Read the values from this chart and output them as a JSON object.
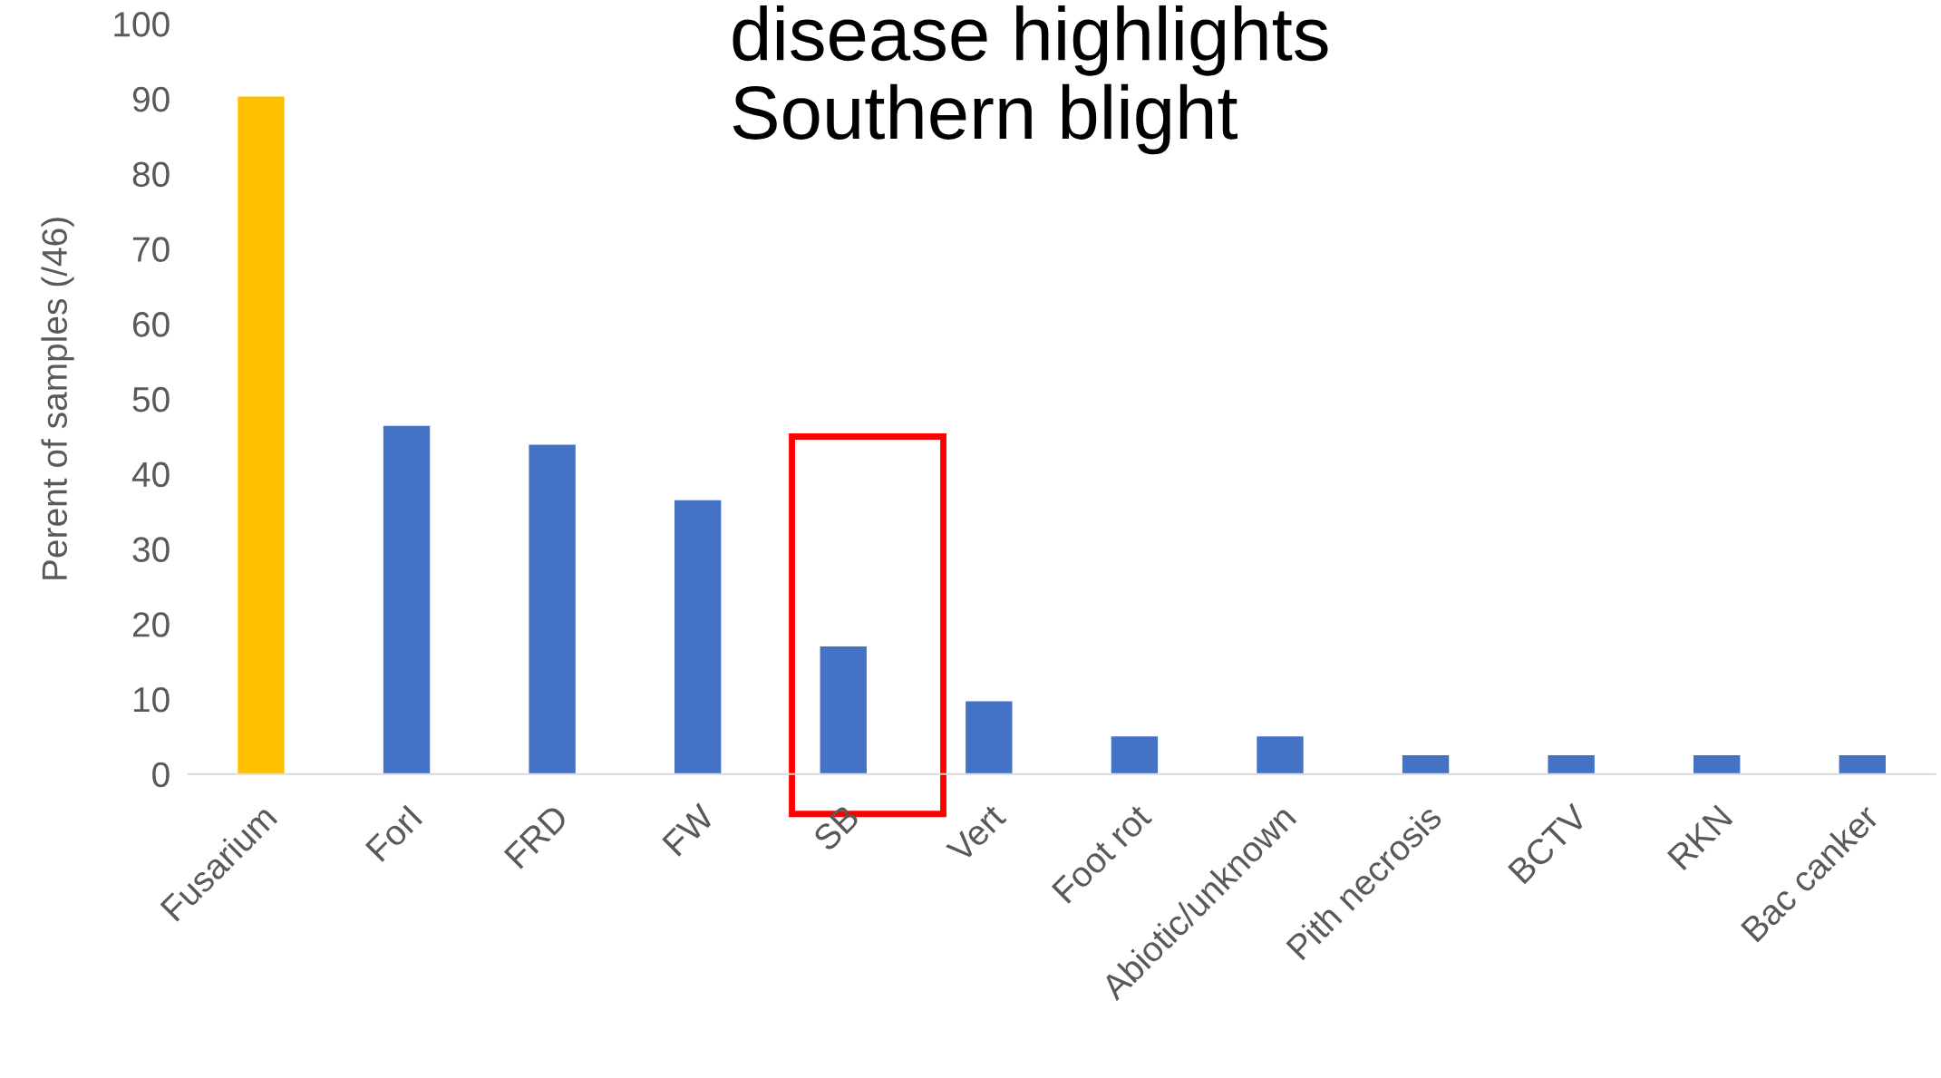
{
  "chart_data": {
    "type": "bar",
    "title": "disease highlights\nSouthern blight",
    "ylabel": "Perent of samples (/46)",
    "categories": [
      "Fusarium",
      "ForI",
      "FRD",
      "FW",
      "SB",
      "Vert",
      "Foot rot",
      "Abiotic/unknown",
      "Pith necrosis",
      "BCTV",
      "RKN",
      "Bac canker"
    ],
    "values": [
      90.3,
      46.4,
      43.9,
      36.5,
      17,
      9.7,
      5,
      5,
      2.5,
      2.5,
      2.5,
      2.5
    ],
    "colors": [
      "#ffc000",
      "#4472c4",
      "#4472c4",
      "#4472c4",
      "#4472c4",
      "#4472c4",
      "#4472c4",
      "#4472c4",
      "#4472c4",
      "#4472c4",
      "#4472c4",
      "#4472c4"
    ],
    "ylim": [
      0,
      100
    ],
    "yticks": [
      0,
      10,
      20,
      30,
      40,
      50,
      60,
      70,
      80,
      90,
      100
    ],
    "grid": false,
    "legend": false
  }
}
